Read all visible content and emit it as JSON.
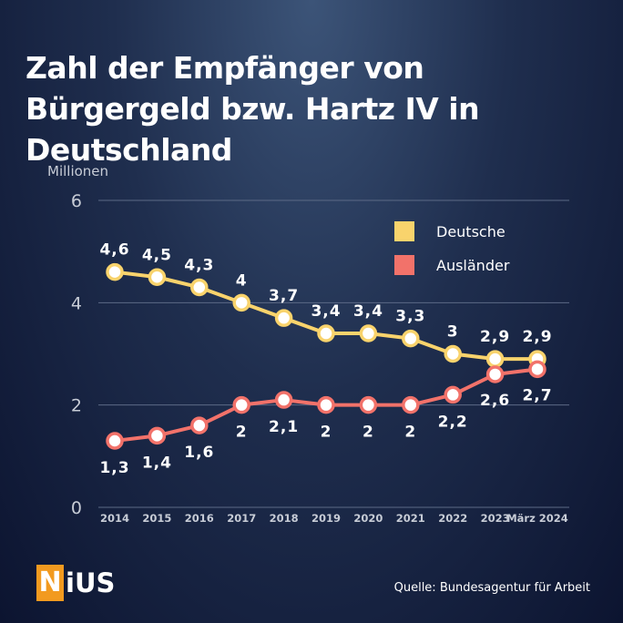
{
  "title": "Zahl der Empfänger von Bürgergeld bzw. Hartz IV in Deutschland",
  "logo": {
    "mark": "N",
    "rest": "iUS"
  },
  "source": "Quelle: Bundesagentur für Arbeit",
  "colors": {
    "deutsche": "#f9d36c",
    "auslaender": "#f2726a",
    "grid": "#5c6a86",
    "axis_text": "#c7ccd6"
  },
  "chart_data": {
    "type": "line",
    "ylabel": "Millionen",
    "ylim": [
      0,
      6
    ],
    "yticks": [
      0,
      2,
      4,
      6
    ],
    "grid": true,
    "legend_position": "top-right",
    "categories": [
      "2014",
      "2015",
      "2016",
      "2017",
      "2018",
      "2019",
      "2020",
      "2021",
      "2022",
      "2023",
      "März 2024"
    ],
    "series": [
      {
        "name": "Deutsche",
        "values": [
          4.6,
          4.5,
          4.3,
          4.0,
          3.7,
          3.4,
          3.4,
          3.3,
          3.0,
          2.9,
          2.9
        ],
        "labels": [
          "4,6",
          "4,5",
          "4,3",
          "4",
          "3,7",
          "3,4",
          "3,4",
          "3,3",
          "3",
          "2,9",
          "2,9"
        ]
      },
      {
        "name": "Ausländer",
        "values": [
          1.3,
          1.4,
          1.6,
          2.0,
          2.1,
          2.0,
          2.0,
          2.0,
          2.2,
          2.6,
          2.7
        ],
        "labels": [
          "1,3",
          "1,4",
          "1,6",
          "2",
          "2,1",
          "2",
          "2",
          "2",
          "2,2",
          "2,6",
          "2,7"
        ]
      }
    ]
  }
}
